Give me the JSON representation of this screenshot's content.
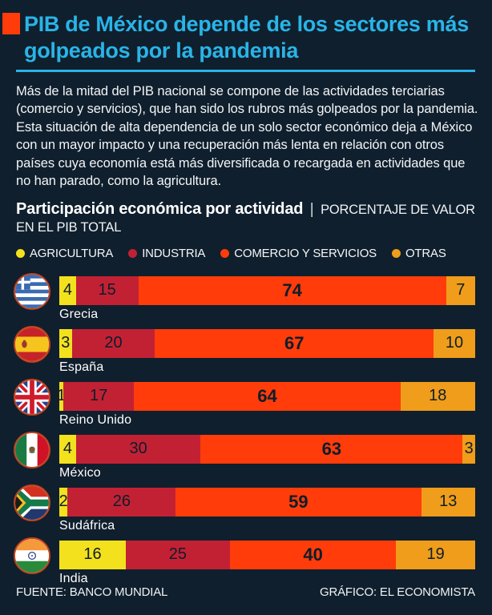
{
  "page": {
    "background": "#101f2d",
    "accent_cyan": "#29b4e8",
    "accent_red": "#ff3c0a",
    "title": "PIB de México depende de los sectores más golpeados por la pandemia",
    "intro": "Más de la mitad del PIB nacional se compone de las actividades terciarias (comercio y servicios), que han sido los rubros más golpeados por la pandemia. Esta situación de alta dependencia de un solo sector económico deja a México con un mayor impacto y una recuperación más lenta en relación con otros países cuya economía está más diversificada o recargada en actividades que no han parado, como la agricultura.",
    "subtitle_bold": "Participación económica por actividad",
    "subtitle_separator": "|",
    "subtitle_rest": "PORCENTAJE DE VALOR EN EL PIB TOTAL",
    "footer_left": "FUENTE: BANCO MUNDIAL",
    "footer_right": "GRÁFICO: EL ECONOMISTA"
  },
  "legend": [
    {
      "label": "AGRICULTURA",
      "color": "#f3e11e"
    },
    {
      "label": "INDUSTRIA",
      "color": "#c22134"
    },
    {
      "label": "COMERCIO Y SERVICIOS",
      "color": "#ff3c0a"
    },
    {
      "label": "OTRAS",
      "color": "#ef9d1a"
    }
  ],
  "chart_data": {
    "type": "bar",
    "orientation": "horizontal-stacked",
    "title": "Participación económica por actividad",
    "subtitle": "PORCENTAJE DE VALOR EN EL PIB TOTAL",
    "unit": "% del PIB total",
    "xlim": [
      0,
      100
    ],
    "series_names": [
      "AGRICULTURA",
      "INDUSTRIA",
      "COMERCIO Y SERVICIOS",
      "OTRAS"
    ],
    "series_colors": [
      "#f3e11e",
      "#c22134",
      "#ff3c0a",
      "#ef9d1a"
    ],
    "emphasized_series_index": 2,
    "rows": [
      {
        "country": "Grecia",
        "flag": "greece",
        "values": [
          4,
          15,
          74,
          7
        ]
      },
      {
        "country": "España",
        "flag": "spain",
        "values": [
          3,
          20,
          67,
          10
        ]
      },
      {
        "country": "Reino Unido",
        "flag": "uk",
        "values": [
          1,
          17,
          64,
          18
        ]
      },
      {
        "country": "México",
        "flag": "mexico",
        "values": [
          4,
          30,
          63,
          3
        ]
      },
      {
        "country": "Sudáfrica",
        "flag": "south-africa",
        "values": [
          2,
          26,
          59,
          13
        ]
      },
      {
        "country": "India",
        "flag": "india",
        "values": [
          16,
          25,
          40,
          19
        ]
      }
    ]
  }
}
